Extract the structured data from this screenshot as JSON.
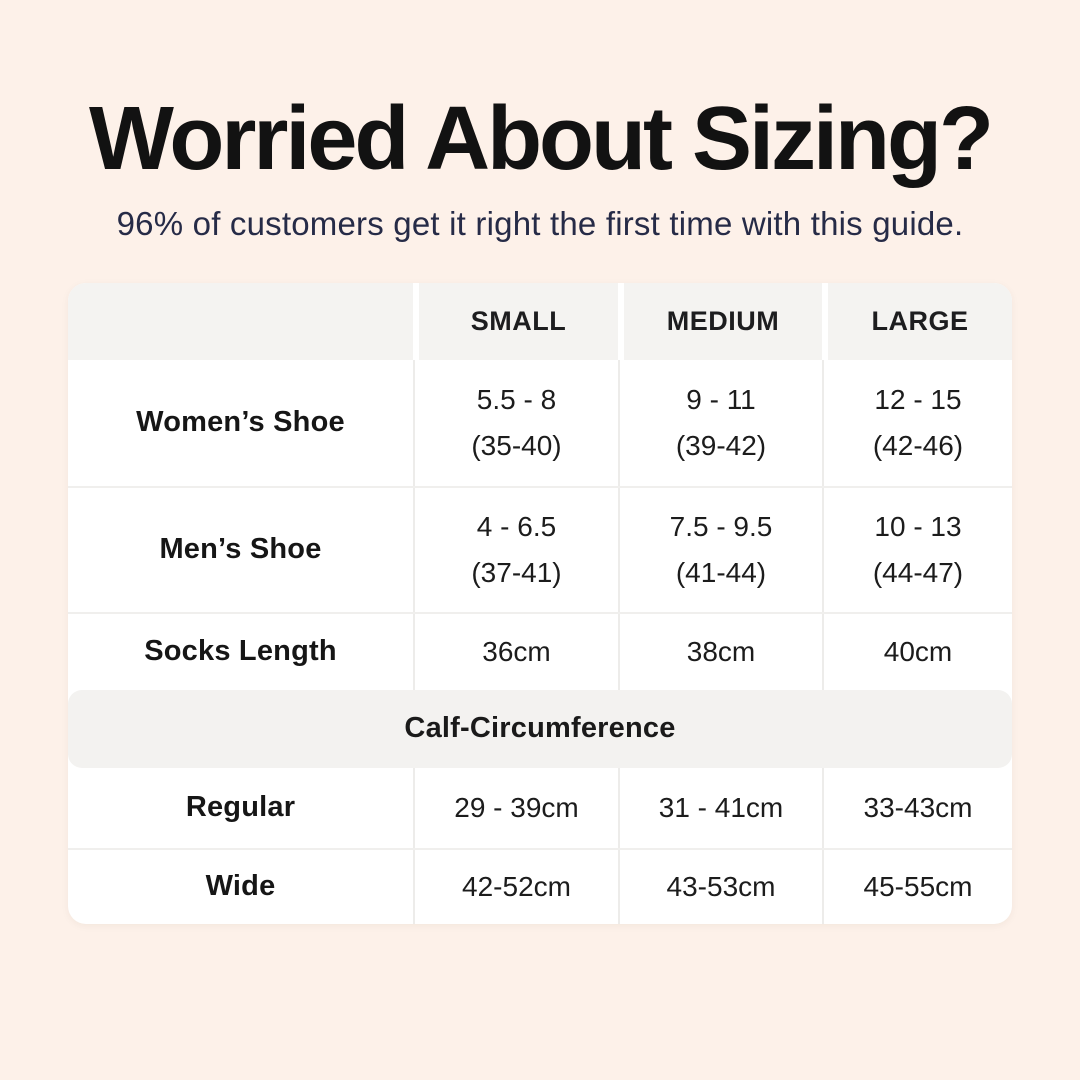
{
  "colors": {
    "page_background": "#fdf1e9",
    "title_text": "#121212",
    "subtitle_text": "#262b47",
    "card_background": "#ffffff",
    "band_background": "#f4f3f1",
    "body_text": "#1c1c1c"
  },
  "header": {
    "title": "Worried About Sizing?",
    "subtitle": "96% of customers get it right the first time with this guide."
  },
  "size_table": {
    "headers": {
      "empty": "",
      "small": "SMALL",
      "medium": "MEDIUM",
      "large": "LARGE"
    },
    "shoe_rows": [
      {
        "label": "Women’s Shoe",
        "small_range": "5.5 - 8",
        "small_eu": "(35-40)",
        "medium_range": "9 - 11",
        "medium_eu": "(39-42)",
        "large_range": "12 - 15",
        "large_eu": "(42-46)"
      },
      {
        "label": "Men’s Shoe",
        "small_range": "4 - 6.5",
        "small_eu": "(37-41)",
        "medium_range": "7.5 - 9.5",
        "medium_eu": "(41-44)",
        "large_range": "10 - 13",
        "large_eu": "(44-47)"
      }
    ],
    "socks_row": {
      "label": "Socks Length",
      "small": "36cm",
      "medium": "38cm",
      "large": "40cm"
    },
    "calf_section": {
      "title": "Calf-Circumference"
    },
    "calf_rows": [
      {
        "label": "Regular",
        "small": "29 - 39cm",
        "medium": "31 - 41cm",
        "large": "33-43cm"
      },
      {
        "label": "Wide",
        "small": "42-52cm",
        "medium": "43-53cm",
        "large": "45-55cm"
      }
    ]
  },
  "chart_data": {
    "type": "table",
    "title": "Worried About Sizing?",
    "subtitle": "96% of customers get it right the first time with this guide.",
    "columns": [
      "",
      "SMALL",
      "MEDIUM",
      "LARGE"
    ],
    "rows": [
      [
        "Women’s Shoe",
        "5.5 - 8 (35-40)",
        "9 - 11 (39-42)",
        "12 - 15 (42-46)"
      ],
      [
        "Men’s Shoe",
        "4 - 6.5 (37-41)",
        "7.5 - 9.5 (41-44)",
        "10 - 13 (44-47)"
      ],
      [
        "Socks Length",
        "36cm",
        "38cm",
        "40cm"
      ],
      [
        "Calf-Circumference (section header, spans all columns)",
        "",
        "",
        ""
      ],
      [
        "Regular",
        "29 - 39cm",
        "31 - 41cm",
        "33-43cm"
      ],
      [
        "Wide",
        "42-52cm",
        "43-53cm",
        "45-55cm"
      ]
    ]
  }
}
